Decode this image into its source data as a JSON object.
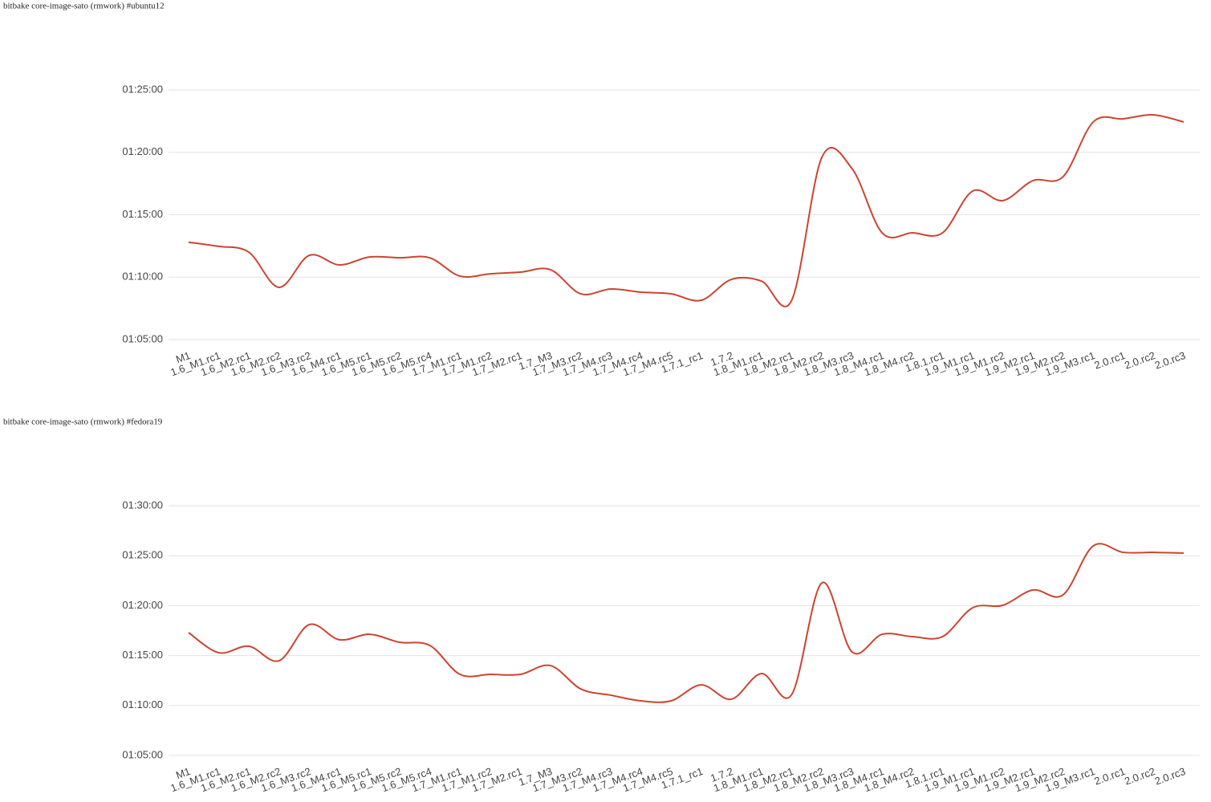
{
  "chart_data": [
    {
      "type": "line",
      "title": "bitbake core-image-sato (rmwork) #ubuntu12",
      "categories": [
        "M1",
        "1.6_M1.rc1",
        "1.6_M2.rc1",
        "1.6_M2.rc2",
        "1.6_M3.rc2",
        "1.6_M4.rc1",
        "1.6_M5.rc1",
        "1.6_M5.rc2",
        "1.6_M5.rc4",
        "1.7_M1.rc1",
        "1.7_M1.rc2",
        "1.7_M2.rc1",
        "1.7_M3",
        "1.7_M3.rc2",
        "1.7_M4.rc3",
        "1.7_M4.rc4",
        "1.7_M4.rc5",
        "1.7.1_rc1",
        "1.7.2",
        "1.8_M1.rc1",
        "1.8_M2.rc1",
        "1.8_M2.rc2",
        "1.8_M3.rc3",
        "1.8_M4.rc1",
        "1.8_M4.rc2",
        "1.8.1.rc1",
        "1.9_M1.rc1",
        "1.9_M1.rc2",
        "1.9_M2.rc1",
        "1.9_M2.rc2",
        "1.9_M3.rc1",
        "2.0.rc1",
        "2.0.rc2",
        "2.0.rc3"
      ],
      "values": [
        4368,
        4348,
        4320,
        4151,
        4305,
        4259,
        4297,
        4293,
        4293,
        4205,
        4216,
        4224,
        4236,
        4120,
        4143,
        4128,
        4120,
        4089,
        4189,
        4181,
        4089,
        4776,
        4722,
        4413,
        4413,
        4413,
        4614,
        4568,
        4664,
        4683,
        4946,
        4961,
        4980,
        4946
      ],
      "color": "#cc4433",
      "ylim": [
        3900,
        5280
      ],
      "yticks": [
        {
          "value": 3900,
          "label": "01:05:00"
        },
        {
          "value": 4200,
          "label": "01:10:00"
        },
        {
          "value": 4500,
          "label": "01:15:00"
        },
        {
          "value": 4800,
          "label": "01:20:00"
        },
        {
          "value": 5100,
          "label": "01:25:00"
        }
      ],
      "grid": true
    },
    {
      "type": "line",
      "title": "bitbake core-image-sato (rmwork) #fedora19",
      "categories": [
        "M1",
        "1.6_M1.rc1",
        "1.6_M2.rc1",
        "1.6_M2.rc2",
        "1.6_M3.rc2",
        "1.6_M4.rc1",
        "1.6_M5.rc1",
        "1.6_M5.rc2",
        "1.6_M5.rc4",
        "1.7_M1.rc1",
        "1.7_M1.rc2",
        "1.7_M2.rc1",
        "1.7_M3",
        "1.7_M3.rc2",
        "1.7_M4.rc3",
        "1.7_M4.rc4",
        "1.7_M4.rc5",
        "1.7.1_rc1",
        "1.7.2",
        "1.8_M1.rc1",
        "1.8_M2.rc1",
        "1.8_M2.rc2",
        "1.8_M3.rc3",
        "1.8_M4.rc1",
        "1.8_M4.rc2",
        "1.8.1.rc1",
        "1.9_M1.rc1",
        "1.9_M1.rc2",
        "1.9_M2.rc1",
        "1.9_M2.rc2",
        "1.9_M3.rc1",
        "2.0.rc1",
        "2.0.rc2",
        "2.0.rc3"
      ],
      "values": [
        4638,
        4517,
        4556,
        4469,
        4686,
        4595,
        4628,
        4580,
        4561,
        4387,
        4387,
        4387,
        4440,
        4300,
        4262,
        4228,
        4228,
        4324,
        4238,
        4392,
        4266,
        4937,
        4522,
        4628,
        4614,
        4614,
        4787,
        4802,
        4894,
        4865,
        5159,
        5120,
        5120,
        5116
      ],
      "color": "#cc4433",
      "ylim": [
        3900,
        5580
      ],
      "yticks": [
        {
          "value": 3900,
          "label": "01:05:00"
        },
        {
          "value": 4200,
          "label": "01:10:00"
        },
        {
          "value": 4500,
          "label": "01:15:00"
        },
        {
          "value": 4800,
          "label": "01:20:00"
        },
        {
          "value": 5100,
          "label": "01:25:00"
        },
        {
          "value": 5400,
          "label": "01:30:00"
        }
      ],
      "grid": true
    }
  ]
}
